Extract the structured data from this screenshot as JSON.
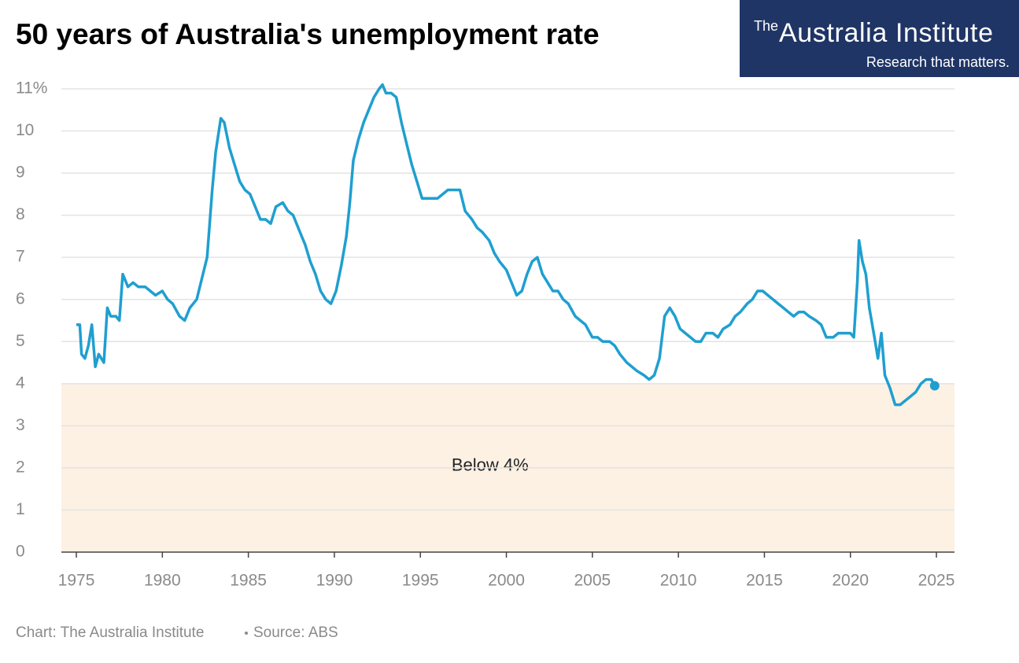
{
  "chart_data": {
    "type": "line",
    "title": "50 years of Australia's unemployment rate",
    "x": [
      1975.0,
      1975.2,
      1975.3,
      1975.5,
      1975.7,
      1975.9,
      1976.1,
      1976.3,
      1976.6,
      1976.8,
      1977.0,
      1977.3,
      1977.5,
      1977.7,
      1978.0,
      1978.3,
      1978.6,
      1979.0,
      1979.3,
      1979.6,
      1980.0,
      1980.3,
      1980.6,
      1981.0,
      1981.3,
      1981.6,
      1982.0,
      1982.3,
      1982.6,
      1982.9,
      1983.1,
      1983.4,
      1983.6,
      1983.9,
      1984.2,
      1984.5,
      1984.8,
      1985.1,
      1985.4,
      1985.7,
      1986.0,
      1986.3,
      1986.6,
      1987.0,
      1987.3,
      1987.6,
      1988.0,
      1988.3,
      1988.6,
      1988.9,
      1989.2,
      1989.5,
      1989.8,
      1990.1,
      1990.4,
      1990.7,
      1990.9,
      1991.1,
      1991.4,
      1991.7,
      1992.0,
      1992.3,
      1992.6,
      1992.8,
      1993.0,
      1993.3,
      1993.6,
      1993.9,
      1994.2,
      1994.5,
      1994.8,
      1995.1,
      1995.4,
      1995.7,
      1996.0,
      1996.3,
      1996.6,
      1997.0,
      1997.3,
      1997.6,
      1998.0,
      1998.3,
      1998.6,
      1999.0,
      1999.3,
      1999.6,
      2000.0,
      2000.3,
      2000.6,
      2000.9,
      2001.2,
      2001.5,
      2001.8,
      2002.1,
      2002.4,
      2002.7,
      2003.0,
      2003.3,
      2003.6,
      2004.0,
      2004.3,
      2004.6,
      2005.0,
      2005.3,
      2005.6,
      2006.0,
      2006.3,
      2006.6,
      2007.0,
      2007.3,
      2007.6,
      2008.0,
      2008.3,
      2008.6,
      2008.9,
      2009.2,
      2009.5,
      2009.8,
      2010.1,
      2010.4,
      2010.7,
      2011.0,
      2011.3,
      2011.6,
      2012.0,
      2012.3,
      2012.6,
      2013.0,
      2013.3,
      2013.6,
      2014.0,
      2014.3,
      2014.6,
      2014.9,
      2015.2,
      2015.5,
      2015.8,
      2016.1,
      2016.4,
      2016.7,
      2017.0,
      2017.3,
      2017.6,
      2018.0,
      2018.3,
      2018.6,
      2019.0,
      2019.3,
      2019.6,
      2020.0,
      2020.2,
      2020.4,
      2020.5,
      2020.7,
      2020.9,
      2021.1,
      2021.4,
      2021.6,
      2021.8,
      2022.0,
      2022.3,
      2022.6,
      2022.9,
      2023.2,
      2023.5,
      2023.8,
      2024.1,
      2024.4,
      2024.7,
      2024.9
    ],
    "series": [
      {
        "color": "#1f9fd0",
        "values": [
          5.4,
          5.4,
          4.7,
          4.6,
          4.9,
          5.4,
          4.4,
          4.7,
          4.5,
          5.8,
          5.6,
          5.6,
          5.5,
          6.6,
          6.3,
          6.4,
          6.3,
          6.3,
          6.2,
          6.1,
          6.2,
          6.0,
          5.9,
          5.6,
          5.5,
          5.8,
          6.0,
          6.5,
          7.0,
          8.6,
          9.5,
          10.3,
          10.2,
          9.6,
          9.2,
          8.8,
          8.6,
          8.5,
          8.2,
          7.9,
          7.9,
          7.8,
          8.2,
          8.3,
          8.1,
          8.0,
          7.6,
          7.3,
          6.9,
          6.6,
          6.2,
          6.0,
          5.9,
          6.2,
          6.8,
          7.5,
          8.3,
          9.3,
          9.8,
          10.2,
          10.5,
          10.8,
          11.0,
          11.1,
          10.9,
          10.9,
          10.8,
          10.2,
          9.7,
          9.2,
          8.8,
          8.4,
          8.4,
          8.4,
          8.4,
          8.5,
          8.6,
          8.6,
          8.6,
          8.1,
          7.9,
          7.7,
          7.6,
          7.4,
          7.1,
          6.9,
          6.7,
          6.4,
          6.1,
          6.2,
          6.6,
          6.9,
          7.0,
          6.6,
          6.4,
          6.2,
          6.2,
          6.0,
          5.9,
          5.6,
          5.5,
          5.4,
          5.1,
          5.1,
          5.0,
          5.0,
          4.9,
          4.7,
          4.5,
          4.4,
          4.3,
          4.2,
          4.1,
          4.2,
          4.6,
          5.6,
          5.8,
          5.6,
          5.3,
          5.2,
          5.1,
          5.0,
          5.0,
          5.2,
          5.2,
          5.1,
          5.3,
          5.4,
          5.6,
          5.7,
          5.9,
          6.0,
          6.2,
          6.2,
          6.1,
          6.0,
          5.9,
          5.8,
          5.7,
          5.6,
          5.7,
          5.7,
          5.6,
          5.5,
          5.4,
          5.1,
          5.1,
          5.2,
          5.2,
          5.2,
          5.1,
          6.4,
          7.4,
          6.9,
          6.6,
          5.8,
          5.1,
          4.6,
          5.2,
          4.2,
          3.9,
          3.5,
          3.5,
          3.6,
          3.7,
          3.8,
          4.0,
          4.1,
          4.1,
          3.95
        ]
      }
    ],
    "xlim": [
      1974.13,
      2026.05
    ],
    "xticks": [
      1975,
      1980,
      1985,
      1990,
      1995,
      2000,
      2005,
      2010,
      2015,
      2020,
      2025
    ],
    "ylim": [
      0,
      11
    ],
    "yticks": [
      0,
      1,
      2,
      3,
      4,
      5,
      6,
      7,
      8,
      9,
      10,
      {
        "value": 11,
        "label": "11%"
      }
    ],
    "grid": true,
    "mark_last": true,
    "band": {
      "from": 0,
      "to": 4,
      "label": "Below 4%",
      "color": "#fdf1e4"
    },
    "credit": "Chart: The Australia Institute",
    "source": "Source: ABS"
  },
  "logo": {
    "prefix": "The",
    "name": "Australia Institute",
    "tagline": "Research that matters."
  }
}
